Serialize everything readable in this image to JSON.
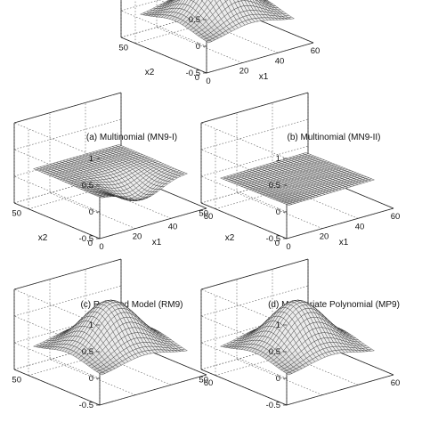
{
  "figure": {
    "captions": {
      "a": "(a) Multinomial (MN9-I)",
      "b": "(b) Multinomial (MN9-II)",
      "c": "(c) Reduced Model (RM9)",
      "d": "(d) Multivariate Polynomial (MP9)"
    }
  },
  "chart_data": [
    {
      "type": "surface",
      "panel": "top",
      "zticks": [
        "0.5",
        "0",
        "-0.5"
      ],
      "x2ticks": [
        "50",
        "0"
      ],
      "x1ticks": [
        "0",
        "20",
        "40",
        "60"
      ],
      "xlabel": "x1",
      "ylabel": "x2",
      "zlim": [
        -0.5,
        1
      ],
      "shape": "bump"
    },
    {
      "type": "surface",
      "panel": "a",
      "zticks": [
        "1",
        "0.5",
        "0",
        "-0.5"
      ],
      "x2ticks": [
        "50",
        "0"
      ],
      "x1ticks": [
        "0",
        "20",
        "40",
        "60"
      ],
      "xlabel": "x1",
      "ylabel": "x2",
      "zlim": [
        -0.5,
        1
      ],
      "shape": "plateau"
    },
    {
      "type": "surface",
      "panel": "b",
      "zticks": [
        "1",
        "0.5",
        "0",
        "-0.5"
      ],
      "x2ticks": [
        "50",
        "0"
      ],
      "x1ticks": [
        "0",
        "20",
        "40",
        "60"
      ],
      "xlabel": "x1",
      "ylabel": "x2",
      "zlim": [
        -0.5,
        1
      ],
      "shape": "flat"
    },
    {
      "type": "surface",
      "panel": "c",
      "zticks": [
        "1",
        "0.5",
        "0",
        "-0.5"
      ],
      "x2ticks": [
        "50"
      ],
      "x1ticks": [
        "60"
      ],
      "zlim": [
        -0.5,
        1
      ],
      "shape": "bump"
    },
    {
      "type": "surface",
      "panel": "d",
      "zticks": [
        "1",
        "0.5",
        "0",
        "-0.5"
      ],
      "x2ticks": [
        "50"
      ],
      "x1ticks": [
        "60"
      ],
      "zlim": [
        -0.5,
        1
      ],
      "shape": "bump"
    }
  ]
}
